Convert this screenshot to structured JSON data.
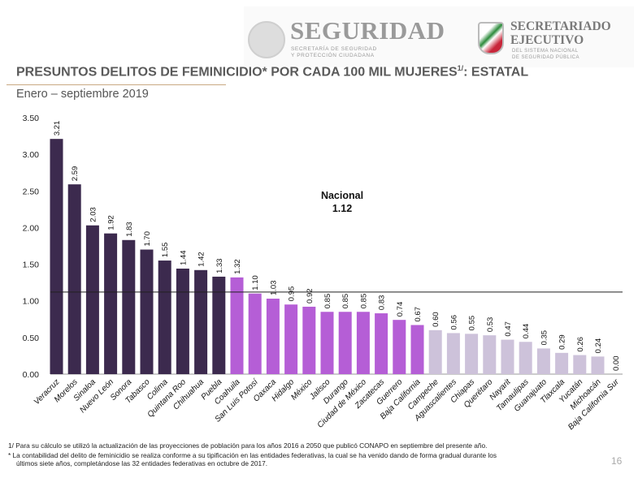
{
  "header": {
    "seguridad_title": "SEGURIDAD",
    "seguridad_sub1": "SECRETARÍA DE SEGURIDAD",
    "seguridad_sub2": "Y PROTECCIÓN CIUDADANA",
    "secretariado_title1": "SECRETARIADO",
    "secretariado_title2": "EJECUTIVO",
    "secretariado_sub1": "DEL SISTEMA NACIONAL",
    "secretariado_sub2": "DE SEGURIDAD PÚBLICA"
  },
  "title": "PRESUNTOS DELITOS DE FEMINICIDIO* POR CADA 100 MIL MUJERES",
  "title_sup": "1/",
  "title_suffix": ": ESTATAL",
  "subtitle": "Enero – septiembre 2019",
  "footnotes": [
    "1/ Para su cálculo se utilizó la actualización de las proyecciones de población para los años 2016 a 2050 que publicó CONAPO en septiembre del presente año.",
    "* La contabilidad del delito de feminicidio se realiza conforme a su tipificación en las entidades federativas, la cual se ha venido dando de forma gradual durante los",
    "últimos siete años, completándose las 32 entidades federativas en octubre de 2017."
  ],
  "page_number": "16",
  "colors": {
    "high": "#3c2a4e",
    "mid": "#b55ed6",
    "low": "#cdc2da",
    "reference_line": "#222222"
  },
  "chart_data": {
    "type": "bar",
    "categories": [
      "Veracruz",
      "Morelos",
      "Sinaloa",
      "Nuevo León",
      "Sonora",
      "Tabasco",
      "Colima",
      "Quintana Roo",
      "Chihuahua",
      "Puebla",
      "Coahuila",
      "San Luis Potosí",
      "Oaxaca",
      "Hidalgo",
      "México",
      "Jalisco",
      "Durango",
      "Ciudad de México",
      "Zacatecas",
      "Guerrero",
      "Baja California",
      "Campeche",
      "Aguascalientes",
      "Chiapas",
      "Querétaro",
      "Nayarit",
      "Tamaulipas",
      "Guanajuato",
      "Tlaxcala",
      "Yucatán",
      "Michoacán",
      "Baja California Sur"
    ],
    "values": [
      3.21,
      2.59,
      2.03,
      1.92,
      1.83,
      1.7,
      1.55,
      1.44,
      1.42,
      1.33,
      1.32,
      1.1,
      1.03,
      0.95,
      0.92,
      0.85,
      0.85,
      0.85,
      0.83,
      0.74,
      0.67,
      0.6,
      0.56,
      0.55,
      0.53,
      0.47,
      0.44,
      0.35,
      0.29,
      0.26,
      0.24,
      0.0
    ],
    "color_groups": [
      "high",
      "high",
      "high",
      "high",
      "high",
      "high",
      "high",
      "high",
      "high",
      "high",
      "mid",
      "mid",
      "mid",
      "mid",
      "mid",
      "mid",
      "mid",
      "mid",
      "mid",
      "mid",
      "mid",
      "low",
      "low",
      "low",
      "low",
      "low",
      "low",
      "low",
      "low",
      "low",
      "low",
      "low"
    ],
    "yticks": [
      "0.00",
      "0.50",
      "1.00",
      "1.50",
      "2.00",
      "2.50",
      "3.00",
      "3.50"
    ],
    "ylim": [
      0,
      3.5
    ],
    "reference": {
      "label": "Nacional",
      "value": 1.12,
      "value_label": "1.12"
    },
    "grid": false
  }
}
